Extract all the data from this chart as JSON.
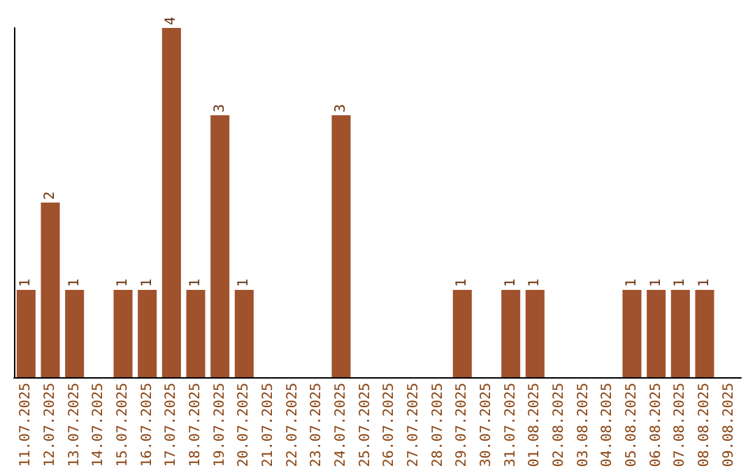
{
  "chart_data": {
    "type": "bar",
    "categories": [
      "11.07.2025",
      "12.07.2025",
      "13.07.2025",
      "14.07.2025",
      "15.07.2025",
      "16.07.2025",
      "17.07.2025",
      "18.07.2025",
      "19.07.2025",
      "20.07.2025",
      "21.07.2025",
      "22.07.2025",
      "23.07.2025",
      "24.07.2025",
      "25.07.2025",
      "26.07.2025",
      "27.07.2025",
      "28.07.2025",
      "29.07.2025",
      "30.07.2025",
      "31.07.2025",
      "01.08.2025",
      "02.08.2025",
      "03.08.2025",
      "04.08.2025",
      "05.08.2025",
      "06.08.2025",
      "07.08.2025",
      "08.08.2025",
      "09.08.2025"
    ],
    "values": [
      1,
      2,
      1,
      0,
      1,
      1,
      4,
      1,
      3,
      1,
      0,
      0,
      0,
      3,
      0,
      0,
      0,
      0,
      1,
      0,
      1,
      1,
      0,
      0,
      0,
      1,
      1,
      1,
      1,
      0
    ],
    "value_labels": [
      "1",
      "2",
      "1",
      null,
      "1",
      "1",
      "4",
      "1",
      "3",
      "1",
      null,
      null,
      null,
      "3",
      null,
      null,
      null,
      null,
      "1",
      null,
      "1",
      "1",
      null,
      null,
      null,
      "1",
      "1",
      "1",
      "1",
      null
    ],
    "color": "#a0522d",
    "grid": false
  }
}
